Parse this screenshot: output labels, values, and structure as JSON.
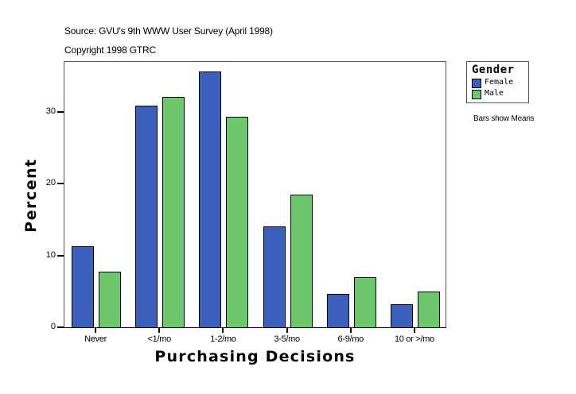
{
  "header": {
    "source": "Source: GVU's 9th WWW User Survey (April 1998)",
    "copyright": "Copyright 1998 GTRC"
  },
  "note": "Bars show Means",
  "colors": {
    "female": "#3a5fbd",
    "male": "#6dc86d"
  },
  "chart_data": {
    "type": "bar",
    "title": "",
    "xlabel": "Purchasing Decisions",
    "ylabel": "Percent",
    "categories": [
      "Never",
      "<1/mo",
      "1-2/mo",
      "3-5/mo",
      "6-9/mo",
      "10 or >/mo"
    ],
    "series": [
      {
        "name": "Female",
        "color": "#3a5fbd",
        "values": [
          11.3,
          30.9,
          35.7,
          14.1,
          4.6,
          3.2
        ]
      },
      {
        "name": "Male",
        "color": "#6dc86d",
        "values": [
          7.8,
          32.1,
          29.4,
          18.5,
          7.0,
          5.0
        ]
      }
    ],
    "yticks": [
      0,
      10,
      20,
      30
    ],
    "ylim": [
      0,
      37
    ],
    "grid": false,
    "legend": {
      "title": "Gender",
      "position": "right",
      "entries": [
        "Female",
        "Male"
      ]
    },
    "annotations": [
      "Bars show Means"
    ]
  }
}
